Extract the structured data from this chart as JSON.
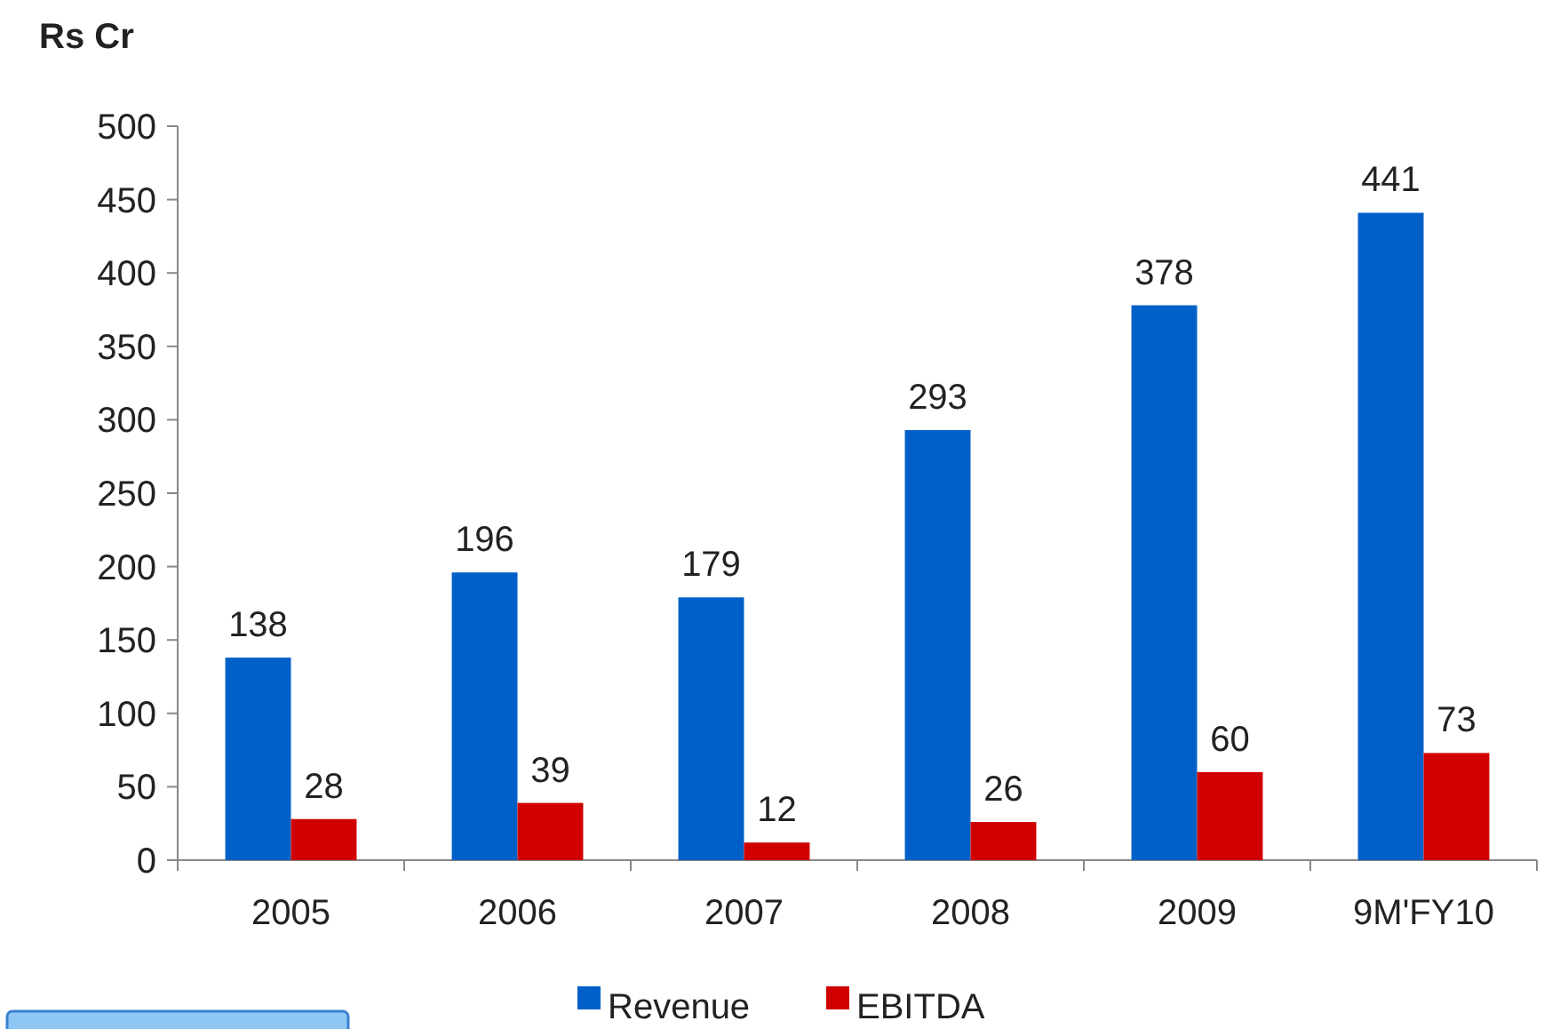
{
  "chart_data": {
    "type": "bar",
    "ylabel": "Rs Cr",
    "categories": [
      "2005",
      "2006",
      "2007",
      "2008",
      "2009",
      "9M'FY10"
    ],
    "series": [
      {
        "name": "Revenue",
        "color": "#0060c8",
        "values": [
          138,
          196,
          179,
          293,
          378,
          441
        ]
      },
      {
        "name": "EBITDA",
        "color": "#d00000",
        "values": [
          28,
          39,
          12,
          26,
          60,
          73
        ]
      }
    ],
    "ylim": [
      0,
      500
    ],
    "yticks": [
      0,
      50,
      100,
      150,
      200,
      250,
      300,
      350,
      400,
      450,
      500
    ],
    "data_labels": true,
    "legend": "bottom",
    "grid": false
  }
}
